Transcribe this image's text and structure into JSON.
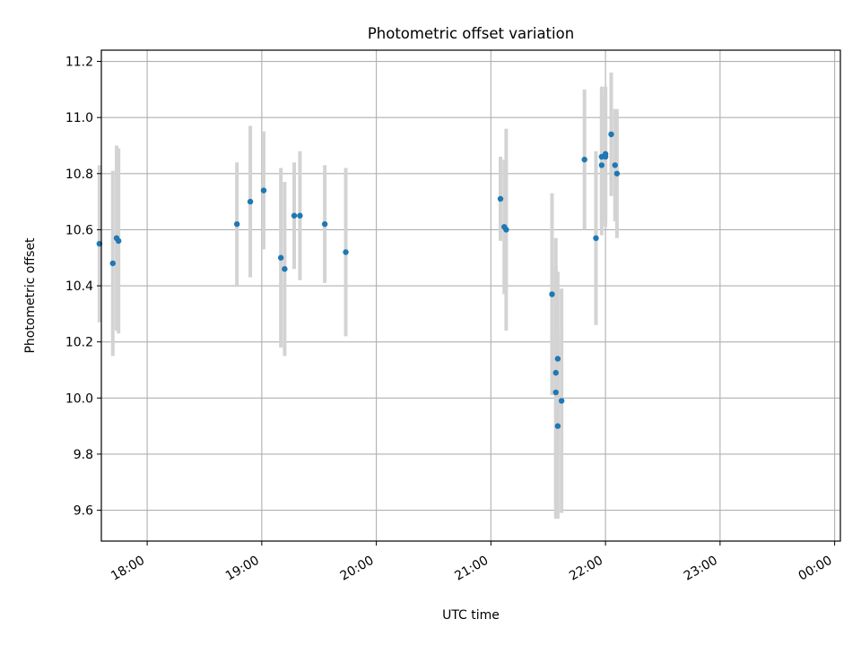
{
  "chart_data": {
    "type": "scatter",
    "title": "Photometric offset variation",
    "xlabel": "UTC time",
    "ylabel": "Photometric offset",
    "xlim": [
      "17:36",
      "00:03"
    ],
    "ylim": [
      9.49,
      11.24
    ],
    "grid": true,
    "legend": "none",
    "x_ticks": [
      "18:00",
      "19:00",
      "20:00",
      "21:00",
      "22:00",
      "23:00",
      "00:00"
    ],
    "y_ticks": [
      "9.6",
      "9.8",
      "10.0",
      "10.2",
      "10.4",
      "10.6",
      "10.8",
      "11.0",
      "11.2"
    ],
    "points": [
      {
        "t": "17:35",
        "y": 10.55,
        "err": 0.28
      },
      {
        "t": "17:42",
        "y": 10.48,
        "err": 0.33
      },
      {
        "t": "17:44",
        "y": 10.57,
        "err": 0.33
      },
      {
        "t": "17:45",
        "y": 10.56,
        "err": 0.33
      },
      {
        "t": "18:47",
        "y": 10.62,
        "err": 0.22
      },
      {
        "t": "18:54",
        "y": 10.7,
        "err": 0.27
      },
      {
        "t": "19:01",
        "y": 10.74,
        "err": 0.21
      },
      {
        "t": "19:10",
        "y": 10.5,
        "err": 0.32
      },
      {
        "t": "19:12",
        "y": 10.46,
        "err": 0.31
      },
      {
        "t": "19:17",
        "y": 10.65,
        "err": 0.19
      },
      {
        "t": "19:20",
        "y": 10.65,
        "err": 0.23
      },
      {
        "t": "19:33",
        "y": 10.62,
        "err": 0.21
      },
      {
        "t": "19:44",
        "y": 10.52,
        "err": 0.3
      },
      {
        "t": "21:05",
        "y": 10.71,
        "err": 0.15
      },
      {
        "t": "21:07",
        "y": 10.61,
        "err": 0.24
      },
      {
        "t": "21:08",
        "y": 10.6,
        "err": 0.36
      },
      {
        "t": "21:32",
        "y": 10.37,
        "err": 0.36
      },
      {
        "t": "21:34",
        "y": 10.09,
        "err": 0.48
      },
      {
        "t": "21:34",
        "y": 10.02,
        "err": 0.45
      },
      {
        "t": "21:35",
        "y": 10.14,
        "err": 0.31
      },
      {
        "t": "21:35",
        "y": 9.9,
        "err": 0.33
      },
      {
        "t": "21:37",
        "y": 9.99,
        "err": 0.4
      },
      {
        "t": "21:49",
        "y": 10.85,
        "err": 0.25
      },
      {
        "t": "21:55",
        "y": 10.57,
        "err": 0.31
      },
      {
        "t": "21:58",
        "y": 10.83,
        "err": 0.25
      },
      {
        "t": "21:58",
        "y": 10.86,
        "err": 0.25
      },
      {
        "t": "22:00",
        "y": 10.86,
        "err": 0.25
      },
      {
        "t": "22:00",
        "y": 10.87,
        "err": 0.24
      },
      {
        "t": "22:03",
        "y": 10.94,
        "err": 0.22
      },
      {
        "t": "22:05",
        "y": 10.83,
        "err": 0.2
      },
      {
        "t": "22:06",
        "y": 10.8,
        "err": 0.23
      }
    ],
    "colors": {
      "point": "#1f77b4",
      "errorbar": "#d3d3d3",
      "grid": "#b0b0b0"
    }
  }
}
